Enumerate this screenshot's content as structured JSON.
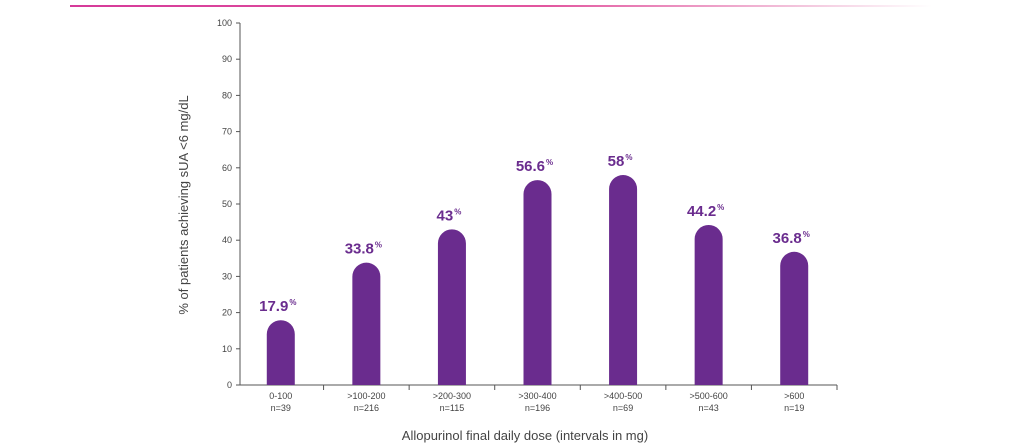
{
  "colors": {
    "bar": "#6a2c8e",
    "axis": "#555555",
    "accent_rule": "#d63a9a"
  },
  "chart_data": {
    "type": "bar",
    "categories": [
      {
        "range": "0-100",
        "n": "n=39"
      },
      {
        "range": ">100-200",
        "n": "n=216"
      },
      {
        "range": ">200-300",
        "n": "n=115"
      },
      {
        "range": ">300-400",
        "n": "n=196"
      },
      {
        "range": ">400-500",
        "n": "n=69"
      },
      {
        "range": ">500-600",
        "n": "n=43"
      },
      {
        "range": ">600",
        "n": "n=19"
      }
    ],
    "values": [
      17.9,
      33.8,
      43,
      56.6,
      58,
      44.2,
      36.8
    ],
    "value_labels": [
      "17.9",
      "33.8",
      "43",
      "56.6",
      "58",
      "44.2",
      "36.8"
    ],
    "value_suffix": "%",
    "ylim": [
      0,
      100
    ],
    "yticks": [
      0,
      10,
      20,
      30,
      40,
      50,
      60,
      70,
      80,
      90,
      100
    ],
    "xlabel": "Allopurinol final daily dose (intervals in mg)",
    "ylabel": "% of patients achieving sUA <6 mg/dL",
    "grid": false,
    "legend": "none"
  }
}
